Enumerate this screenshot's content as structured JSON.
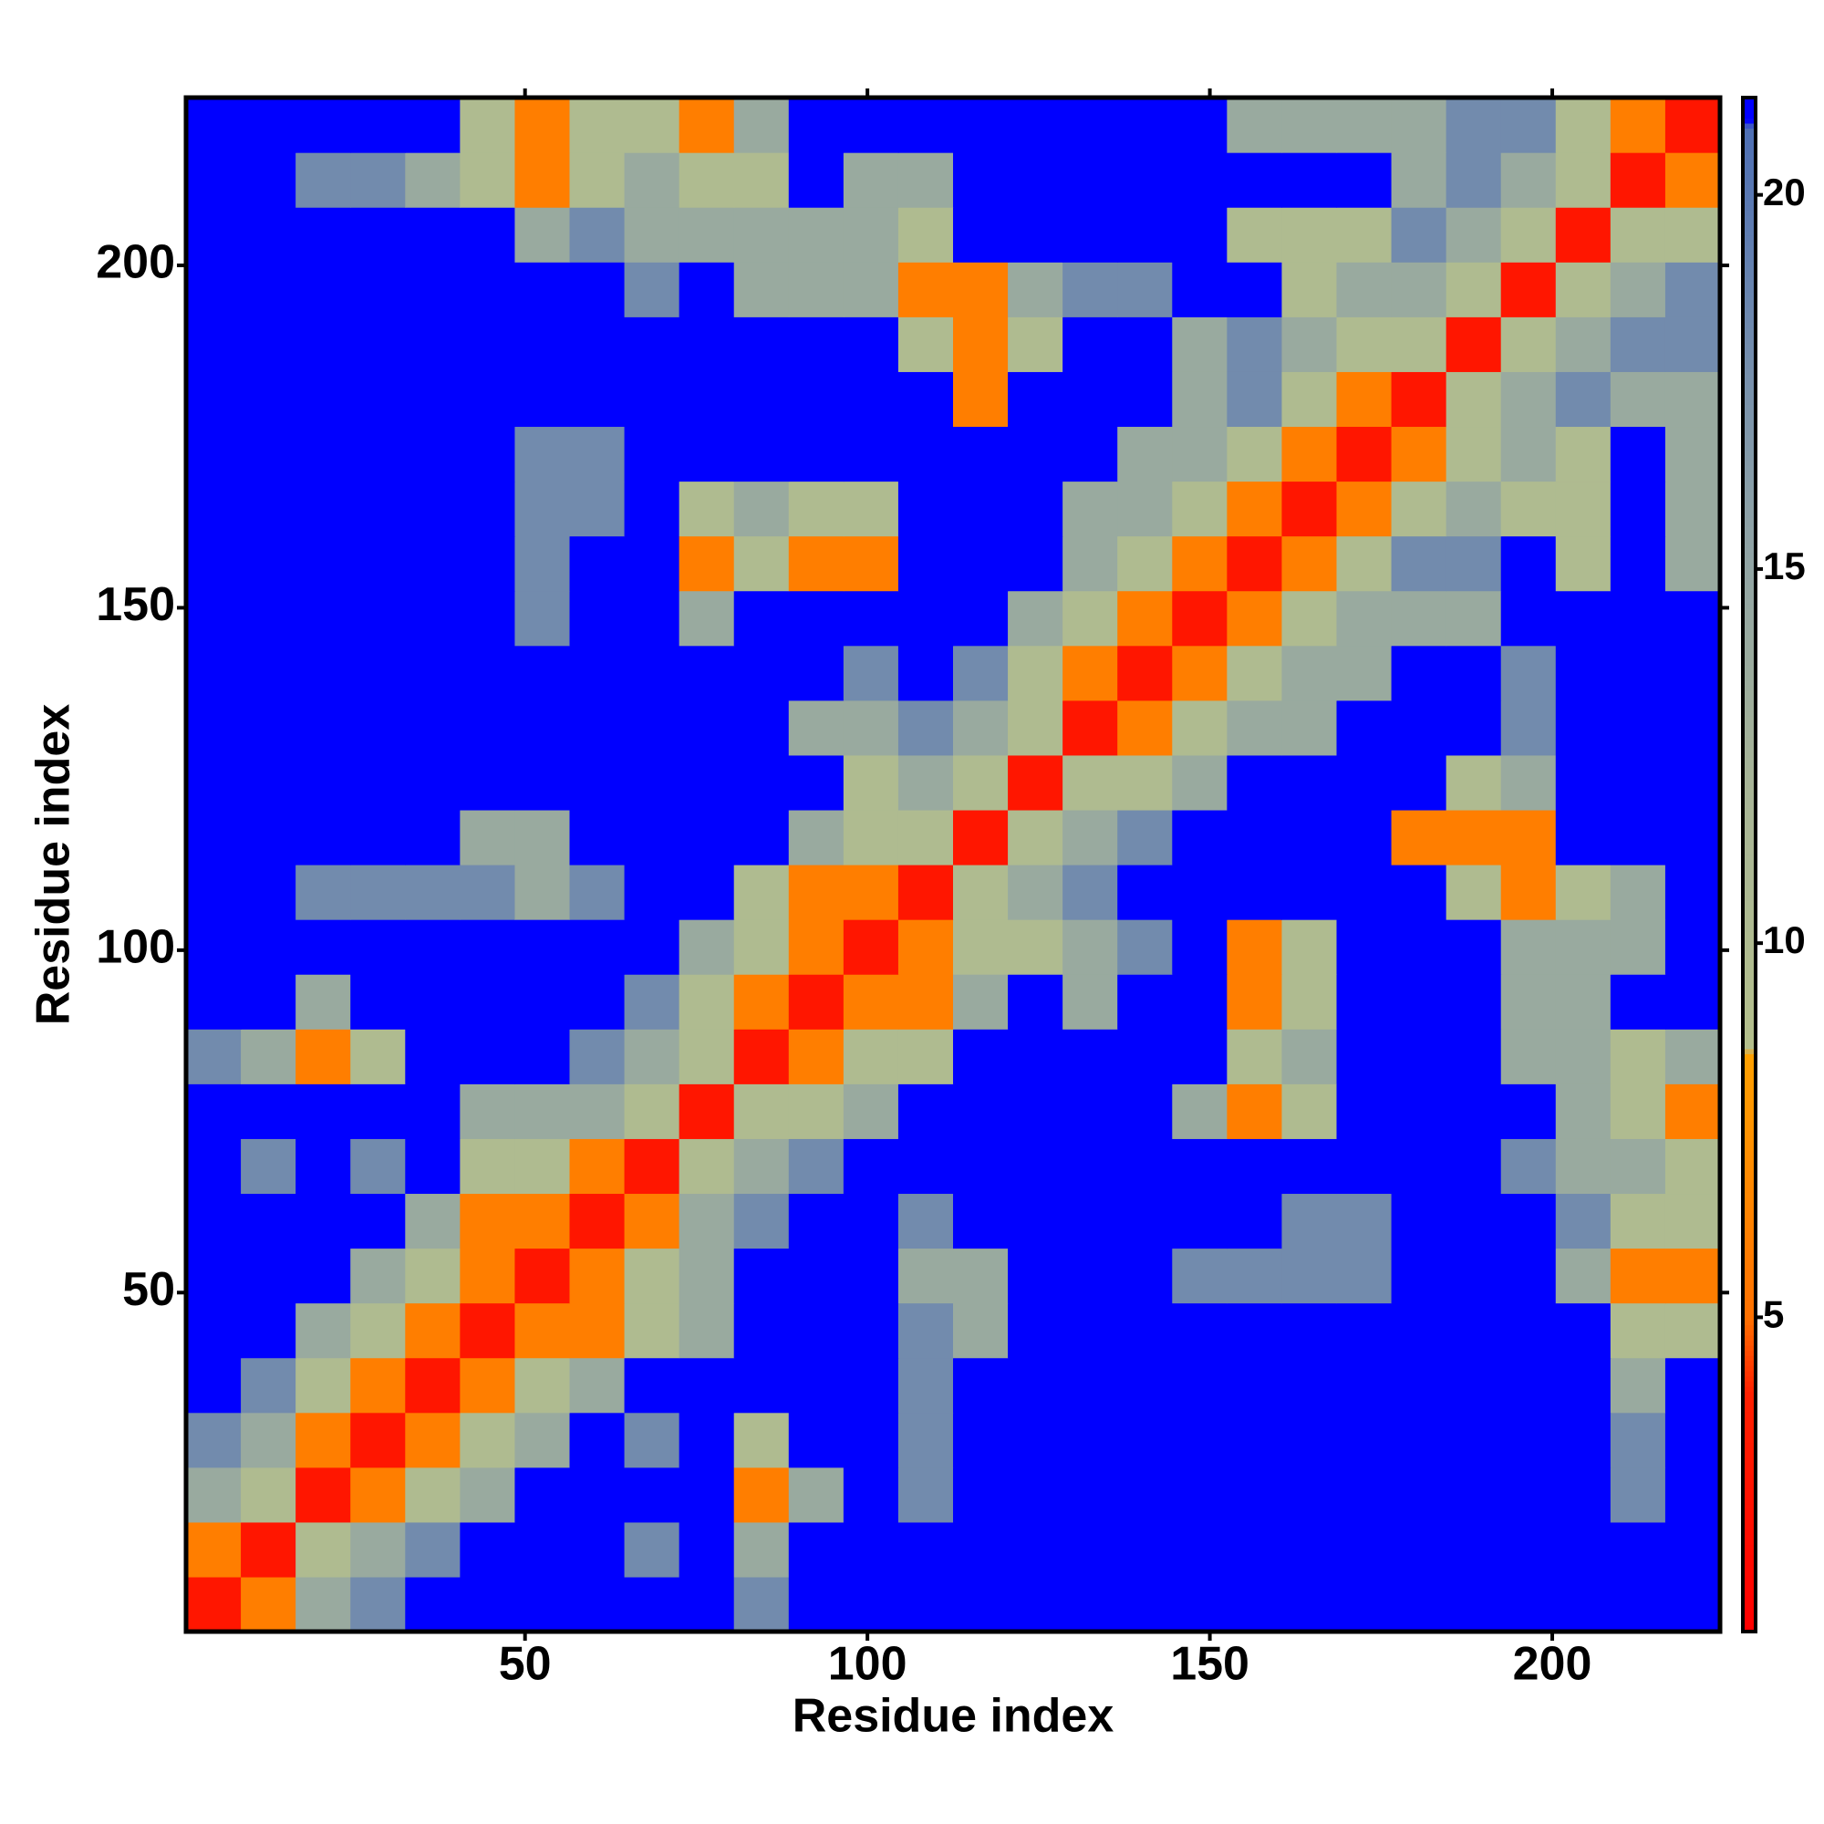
{
  "chart_data": {
    "type": "heatmap",
    "x_label": "Residue index",
    "y_label": "Residue index",
    "xlim": [
      0.5,
      224.5
    ],
    "ylim": [
      0.5,
      224.5
    ],
    "xticks": [
      50,
      100,
      150,
      200
    ],
    "yticks": [
      50,
      100,
      150,
      200
    ],
    "zlim": [
      0.8,
      21.3
    ],
    "zticks": [
      5,
      10,
      15,
      20
    ],
    "colorscale": [
      [
        0.8,
        "#ff0000"
      ],
      [
        4,
        "#ff2000"
      ],
      [
        5,
        "#ff7000"
      ],
      [
        8.5,
        "#ffa000"
      ],
      [
        8.6,
        "#b4bf8c"
      ],
      [
        12,
        "#a8b596"
      ],
      [
        16,
        "#8a9fa8"
      ],
      [
        20.9,
        "#4e6fb4"
      ],
      [
        21,
        "#0000ff"
      ],
      [
        21.3,
        "#0000ff"
      ]
    ],
    "z": [
      [
        3,
        6,
        14,
        18,
        21,
        21,
        21,
        21,
        21,
        21,
        18,
        21,
        21,
        21,
        21,
        21,
        21,
        21,
        21,
        21,
        21,
        21,
        21,
        21,
        21,
        21,
        21,
        21
      ],
      [
        6,
        3,
        10,
        14,
        18,
        21,
        21,
        21,
        18,
        21,
        14,
        21,
        21,
        21,
        21,
        21,
        21,
        21,
        21,
        21,
        21,
        21,
        21,
        21,
        21,
        21,
        21,
        21
      ],
      [
        14,
        10,
        3,
        6,
        10,
        14,
        21,
        21,
        21,
        21,
        6,
        14,
        21,
        18,
        21,
        21,
        21,
        21,
        21,
        21,
        21,
        21,
        21,
        21,
        21,
        21,
        18,
        21
      ],
      [
        18,
        14,
        6,
        3,
        6,
        10,
        14,
        21,
        18,
        21,
        10,
        21,
        21,
        18,
        21,
        21,
        21,
        21,
        21,
        21,
        21,
        21,
        21,
        21,
        21,
        21,
        18,
        21
      ],
      [
        21,
        18,
        10,
        6,
        3,
        6,
        10,
        14,
        21,
        21,
        21,
        21,
        21,
        18,
        21,
        21,
        21,
        21,
        21,
        21,
        21,
        21,
        21,
        21,
        21,
        21,
        14,
        21
      ],
      [
        21,
        21,
        14,
        10,
        6,
        3,
        6,
        6,
        10,
        14,
        21,
        21,
        21,
        18,
        14,
        21,
        21,
        21,
        21,
        21,
        21,
        21,
        21,
        21,
        21,
        21,
        10,
        10
      ],
      [
        21,
        21,
        21,
        14,
        10,
        6,
        3,
        6,
        10,
        14,
        21,
        21,
        21,
        14,
        14,
        21,
        21,
        21,
        18,
        18,
        18,
        18,
        21,
        21,
        21,
        14,
        6,
        6
      ],
      [
        21,
        21,
        21,
        21,
        14,
        6,
        6,
        3,
        6,
        14,
        18,
        21,
        21,
        18,
        21,
        21,
        21,
        21,
        21,
        21,
        18,
        18,
        21,
        21,
        21,
        18,
        10,
        10
      ],
      [
        21,
        18,
        21,
        18,
        21,
        10,
        10,
        6,
        3,
        10,
        14,
        18,
        21,
        21,
        21,
        21,
        21,
        21,
        21,
        21,
        21,
        21,
        21,
        21,
        18,
        14,
        14,
        10
      ],
      [
        21,
        21,
        21,
        21,
        21,
        14,
        14,
        14,
        10,
        3,
        10,
        10,
        14,
        21,
        21,
        21,
        21,
        21,
        14,
        6,
        10,
        21,
        21,
        21,
        21,
        14,
        10,
        6
      ],
      [
        18,
        14,
        6,
        10,
        21,
        21,
        21,
        18,
        14,
        10,
        3,
        6,
        10,
        10,
        21,
        21,
        21,
        21,
        21,
        10,
        14,
        21,
        21,
        21,
        14,
        14,
        10,
        14
      ],
      [
        21,
        21,
        14,
        21,
        21,
        21,
        21,
        21,
        18,
        10,
        6,
        3,
        6,
        6,
        14,
        21,
        14,
        21,
        21,
        6,
        10,
        21,
        21,
        21,
        14,
        14,
        21,
        21
      ],
      [
        21,
        21,
        21,
        21,
        21,
        21,
        21,
        21,
        21,
        14,
        10,
        6,
        3,
        6,
        10,
        10,
        14,
        18,
        21,
        6,
        10,
        21,
        21,
        21,
        14,
        14,
        14,
        21
      ],
      [
        21,
        21,
        18,
        18,
        18,
        18,
        14,
        18,
        21,
        21,
        10,
        6,
        6,
        3,
        10,
        14,
        18,
        21,
        21,
        21,
        21,
        21,
        21,
        10,
        6,
        10,
        14,
        21
      ],
      [
        21,
        21,
        21,
        21,
        21,
        14,
        14,
        21,
        21,
        21,
        21,
        14,
        10,
        10,
        3,
        10,
        14,
        18,
        21,
        21,
        21,
        21,
        6,
        6,
        6,
        21,
        21,
        21
      ],
      [
        21,
        21,
        21,
        21,
        21,
        21,
        21,
        21,
        21,
        21,
        21,
        21,
        10,
        14,
        10,
        3,
        10,
        10,
        14,
        21,
        21,
        21,
        21,
        10,
        14,
        21,
        21,
        21
      ],
      [
        21,
        21,
        21,
        21,
        21,
        21,
        21,
        21,
        21,
        21,
        21,
        14,
        14,
        18,
        14,
        10,
        3,
        6,
        10,
        14,
        14,
        21,
        21,
        21,
        18,
        21,
        21,
        21
      ],
      [
        21,
        21,
        21,
        21,
        21,
        21,
        21,
        21,
        21,
        21,
        21,
        21,
        18,
        21,
        18,
        10,
        6,
        3,
        6,
        10,
        14,
        14,
        21,
        21,
        18,
        21,
        21,
        21
      ],
      [
        21,
        21,
        21,
        21,
        21,
        21,
        18,
        21,
        21,
        14,
        21,
        21,
        21,
        21,
        21,
        14,
        10,
        6,
        3,
        6,
        10,
        14,
        14,
        14,
        21,
        21,
        21,
        21
      ],
      [
        21,
        21,
        21,
        21,
        21,
        21,
        18,
        21,
        21,
        6,
        10,
        6,
        6,
        21,
        21,
        21,
        14,
        10,
        6,
        3,
        6,
        10,
        18,
        18,
        21,
        10,
        21,
        14
      ],
      [
        21,
        21,
        21,
        21,
        21,
        21,
        18,
        18,
        21,
        10,
        14,
        10,
        10,
        21,
        21,
        21,
        14,
        14,
        10,
        6,
        3,
        6,
        10,
        14,
        10,
        10,
        21,
        14
      ],
      [
        21,
        21,
        21,
        21,
        21,
        21,
        18,
        18,
        21,
        21,
        21,
        21,
        21,
        21,
        21,
        21,
        21,
        14,
        14,
        10,
        6,
        3,
        6,
        10,
        14,
        10,
        21,
        14
      ],
      [
        21,
        21,
        21,
        21,
        21,
        21,
        21,
        21,
        21,
        21,
        21,
        21,
        21,
        21,
        6,
        21,
        21,
        21,
        14,
        18,
        10,
        6,
        3,
        10,
        14,
        18,
        14,
        14
      ],
      [
        21,
        21,
        21,
        21,
        21,
        21,
        21,
        21,
        21,
        21,
        21,
        21,
        21,
        10,
        6,
        10,
        21,
        21,
        14,
        18,
        14,
        10,
        10,
        3,
        10,
        14,
        18,
        18
      ],
      [
        21,
        21,
        21,
        21,
        21,
        21,
        21,
        21,
        18,
        21,
        14,
        14,
        14,
        6,
        6,
        14,
        18,
        18,
        21,
        21,
        10,
        14,
        14,
        10,
        3,
        10,
        14,
        18
      ],
      [
        21,
        21,
        21,
        21,
        21,
        21,
        14,
        18,
        14,
        14,
        14,
        14,
        14,
        10,
        21,
        21,
        21,
        21,
        21,
        10,
        10,
        10,
        18,
        14,
        10,
        3,
        10,
        10
      ],
      [
        21,
        21,
        18,
        18,
        14,
        10,
        6,
        10,
        14,
        10,
        10,
        21,
        14,
        14,
        21,
        21,
        21,
        21,
        21,
        21,
        21,
        21,
        14,
        18,
        14,
        10,
        3,
        6
      ],
      [
        21,
        21,
        21,
        21,
        21,
        10,
        6,
        10,
        10,
        6,
        14,
        21,
        21,
        21,
        21,
        21,
        21,
        21,
        21,
        14,
        14,
        14,
        14,
        18,
        18,
        10,
        6,
        3
      ]
    ]
  }
}
